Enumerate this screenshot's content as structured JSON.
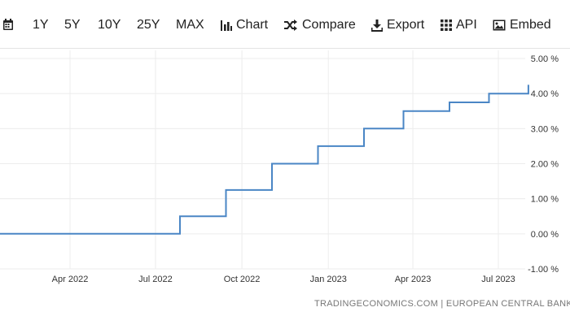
{
  "toolbar": {
    "ranges": [
      "1Y",
      "5Y",
      "10Y",
      "25Y",
      "MAX"
    ],
    "chart_label": "Chart",
    "compare_label": "Compare",
    "export_label": "Export",
    "api_label": "API",
    "embed_label": "Embed"
  },
  "source": "TRADINGECONOMICS.COM | EUROPEAN CENTRAL BANK",
  "colors": {
    "line": "#4a86c5",
    "grid": "#ececec",
    "text": "#333333"
  },
  "chart_data": {
    "type": "line",
    "title": "",
    "xlabel": "",
    "ylabel": "",
    "x_ticks": [
      "Apr 2022",
      "Jul 2022",
      "Oct 2022",
      "Jan 2023",
      "Apr 2023",
      "Jul 2023"
    ],
    "y_ticks": [
      "5.00 %",
      "4.00 %",
      "3.00 %",
      "2.00 %",
      "1.00 %",
      "0.00 %",
      "-1.00 %"
    ],
    "ylim": [
      -1,
      5
    ],
    "y_axis_side": "right",
    "grid": true,
    "series": [
      {
        "points": [
          [
            "2022-01-01",
            0.0
          ],
          [
            "2022-07-27",
            0.0
          ],
          [
            "2022-07-27",
            0.5
          ],
          [
            "2022-09-14",
            0.5
          ],
          [
            "2022-09-14",
            1.25
          ],
          [
            "2022-11-02",
            1.25
          ],
          [
            "2022-11-02",
            2.0
          ],
          [
            "2022-12-21",
            2.0
          ],
          [
            "2022-12-21",
            2.5
          ],
          [
            "2023-02-08",
            2.5
          ],
          [
            "2023-02-08",
            3.0
          ],
          [
            "2023-03-22",
            3.0
          ],
          [
            "2023-03-22",
            3.5
          ],
          [
            "2023-05-10",
            3.5
          ],
          [
            "2023-05-10",
            3.75
          ],
          [
            "2023-06-21",
            3.75
          ],
          [
            "2023-06-21",
            4.0
          ],
          [
            "2023-08-02",
            4.0
          ],
          [
            "2023-08-02",
            4.25
          ]
        ]
      }
    ]
  }
}
